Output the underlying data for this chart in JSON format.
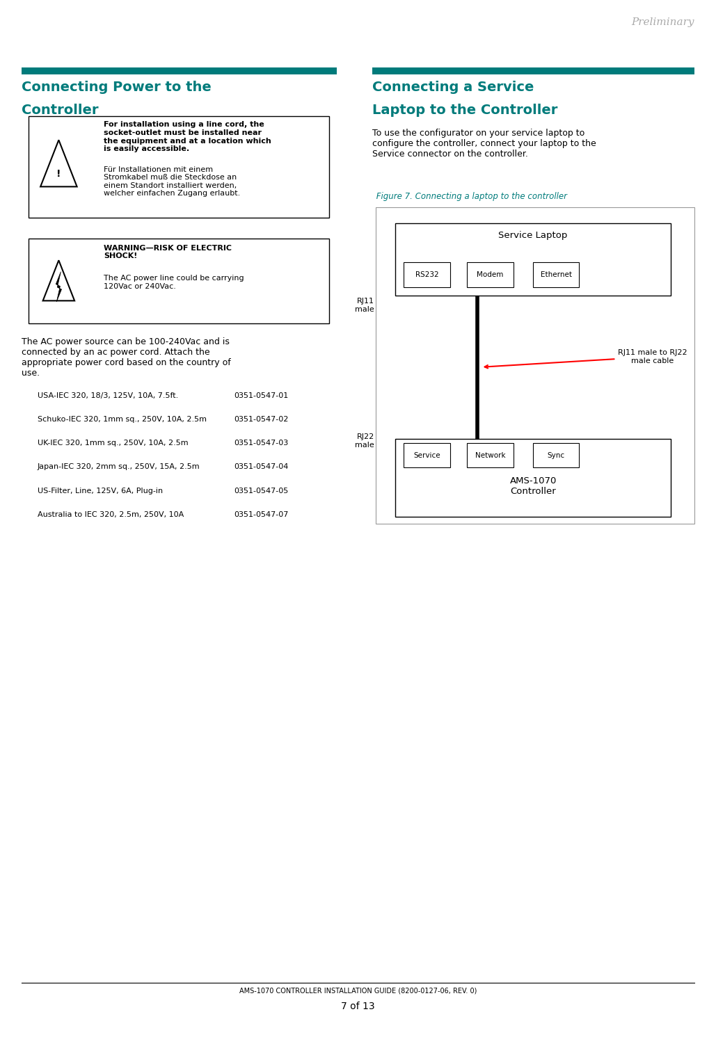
{
  "page_width": 10.29,
  "page_height": 14.91,
  "bg_color": "#ffffff",
  "teal_color": "#007B7B",
  "header_text": "Preliminary",
  "header_color": "#aaaaaa",
  "footer_text1": "AMS-1070 CONTROLLER INSTALLATION GUIDE (8200-0127-06, REV. 0)",
  "footer_text2": "7 of 13",
  "left_section_title1": "Connecting Power to the",
  "left_section_title2": "Controller",
  "right_section_title1": "Connecting a Service",
  "right_section_title2": "Laptop to the Controller",
  "caution_box1_text_bold": "For installation using a line cord, the\nsocket-outlet must be installed near\nthe equipment and at a location which\nis easily accessible.",
  "caution_box1_text_normal": "Für Installationen mit einem\nStromkabel muß die Steckdose an\neinem Standort installiert werden,\nwelcher einfachen Zugang erlaubt.",
  "warning_box_title": "WARNING—RISK OF ELECTRIC\nSHOCK!",
  "warning_box_text": "The AC power line could be carrying\n120Vac or 240Vac.",
  "power_text": "The AC power source can be 100-240Vac and is\nconnected by an ac power cord. Attach the\nappropriate power cord based on the country of\nuse.",
  "power_cords": [
    [
      "USA-IEC 320, 18/3, 125V, 10A, 7.5ft.",
      "0351-0547-01"
    ],
    [
      "Schuko-IEC 320, 1mm sq., 250V, 10A, 2.5m",
      "0351-0547-02"
    ],
    [
      "UK-IEC 320, 1mm sq., 250V, 10A, 2.5m",
      "0351-0547-03"
    ],
    [
      "Japan-IEC 320, 2mm sq., 250V, 15A, 2.5m",
      "0351-0547-04"
    ],
    [
      "US-Filter, Line, 125V, 6A, Plug-in",
      "0351-0547-05"
    ],
    [
      "Australia to IEC 320, 2.5m, 250V, 10A",
      "0351-0547-07"
    ]
  ],
  "laptop_intro": "To use the configurator on your service laptop to\nconfigure the controller, connect your laptop to the\nService connector on the controller.",
  "figure_caption": " Figure 7. Connecting a laptop to the controller",
  "diagram": {
    "laptop_box_label": "Service Laptop",
    "laptop_buttons": [
      "RS232",
      "Modem",
      "Ethernet"
    ],
    "controller_box_label": "AMS-1070\nController",
    "controller_buttons": [
      "Service",
      "Network",
      "Sync"
    ],
    "rj11_label": "RJ11\nmale",
    "rj22_label": "RJ22\nmale",
    "cable_label": "RJ11 male to RJ22\nmale cable"
  }
}
